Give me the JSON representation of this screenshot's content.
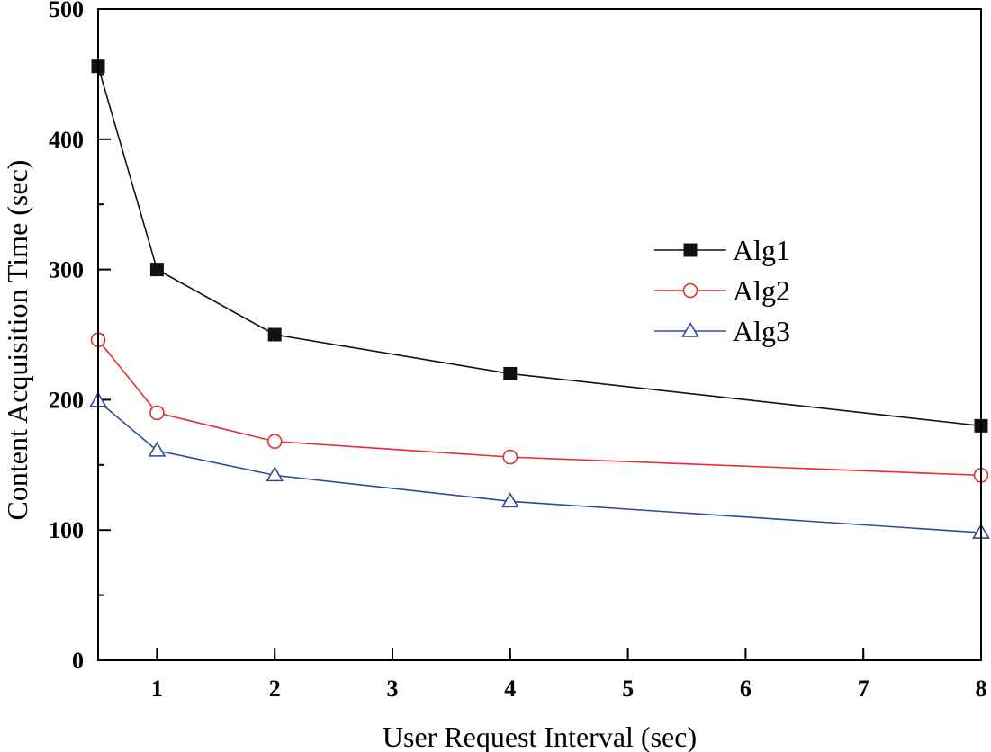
{
  "chart_data": {
    "type": "line",
    "title": "",
    "xlabel": "User Request Interval (sec)",
    "ylabel": "Content Acquisition Time (sec)",
    "xlim": [
      0.5,
      8
    ],
    "ylim": [
      0,
      500
    ],
    "xticks": [
      1,
      2,
      3,
      4,
      5,
      6,
      7,
      8
    ],
    "yticks": [
      0,
      100,
      200,
      300,
      400,
      500
    ],
    "legend_position": "center-right",
    "x": [
      0.5,
      1,
      2,
      4,
      8
    ],
    "series": [
      {
        "name": "Alg1",
        "color": "#111111",
        "marker": "square-filled",
        "values": [
          456,
          300,
          250,
          220,
          180
        ]
      },
      {
        "name": "Alg2",
        "color": "#e03030",
        "marker": "circle-open",
        "values": [
          246,
          190,
          168,
          156,
          142
        ]
      },
      {
        "name": "Alg3",
        "color": "#2e4a9a",
        "marker": "triangle-open",
        "values": [
          199,
          161,
          142,
          122,
          98
        ]
      }
    ]
  }
}
